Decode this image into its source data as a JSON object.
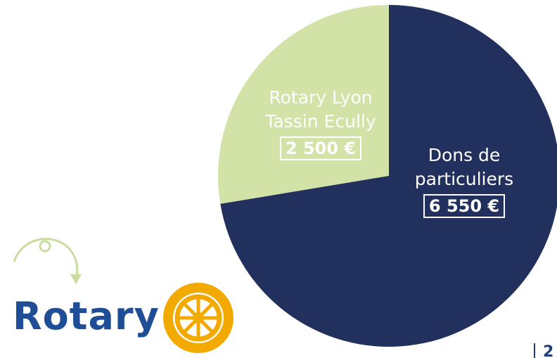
{
  "chart_data": {
    "type": "pie",
    "categories": [
      "Rotary Lyon Tassin Ecully",
      "Dons de particuliers"
    ],
    "values": [
      2500,
      6550
    ],
    "value_labels": [
      "2 500 €",
      "6 550 €"
    ],
    "colors": [
      "#d3e2a6",
      "#22305e"
    ]
  },
  "logo": {
    "text": "Rotary"
  },
  "page_number": "2"
}
